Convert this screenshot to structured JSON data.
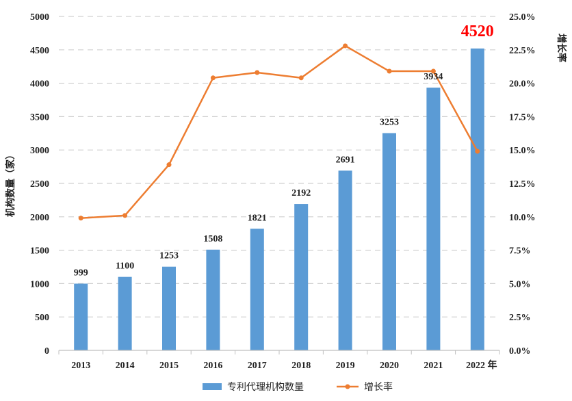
{
  "chart_data": {
    "type": "bar",
    "categories": [
      "2013",
      "2014",
      "2015",
      "2016",
      "2017",
      "2018",
      "2019",
      "2020",
      "2021",
      "2022"
    ],
    "category_labels": [
      "2013",
      "2014",
      "2015",
      "2016",
      "2017",
      "2018",
      "2019",
      "2020",
      "2021",
      "2022 年"
    ],
    "series": [
      {
        "name": "专利代理机构数量",
        "type": "bar",
        "axis": "left",
        "color": "#5b9bd5",
        "values": [
          999,
          1100,
          1253,
          1508,
          1821,
          2192,
          2691,
          3253,
          3934,
          4520
        ],
        "data_labels": [
          "999",
          "1100",
          "1253",
          "1508",
          "1821",
          "2192",
          "2691",
          "3253",
          "3934",
          "4520"
        ],
        "highlight_index": 9,
        "highlight_color": "#ff0000"
      },
      {
        "name": "增长率",
        "type": "line",
        "axis": "right",
        "color": "#ed7d31",
        "values": [
          9.9,
          10.1,
          13.9,
          20.4,
          20.8,
          20.4,
          22.8,
          20.9,
          20.9,
          14.9
        ]
      }
    ],
    "ylabel": "机构数量（家）",
    "ylabel_right": "增长率",
    "ylim": [
      0,
      5000
    ],
    "yticks": [
      "0",
      "500",
      "1000",
      "1500",
      "2000",
      "2500",
      "3000",
      "3500",
      "4000",
      "4500",
      "5000"
    ],
    "ylim_right": [
      0,
      25
    ],
    "yticks_right": [
      "0.0%",
      "2.5%",
      "5.0%",
      "7.5%",
      "10.0%",
      "12.5%",
      "15.0%",
      "17.5%",
      "20.0%",
      "22.5%",
      "25.0%"
    ],
    "grid": "horizontal dashed",
    "legend_position": "bottom"
  }
}
